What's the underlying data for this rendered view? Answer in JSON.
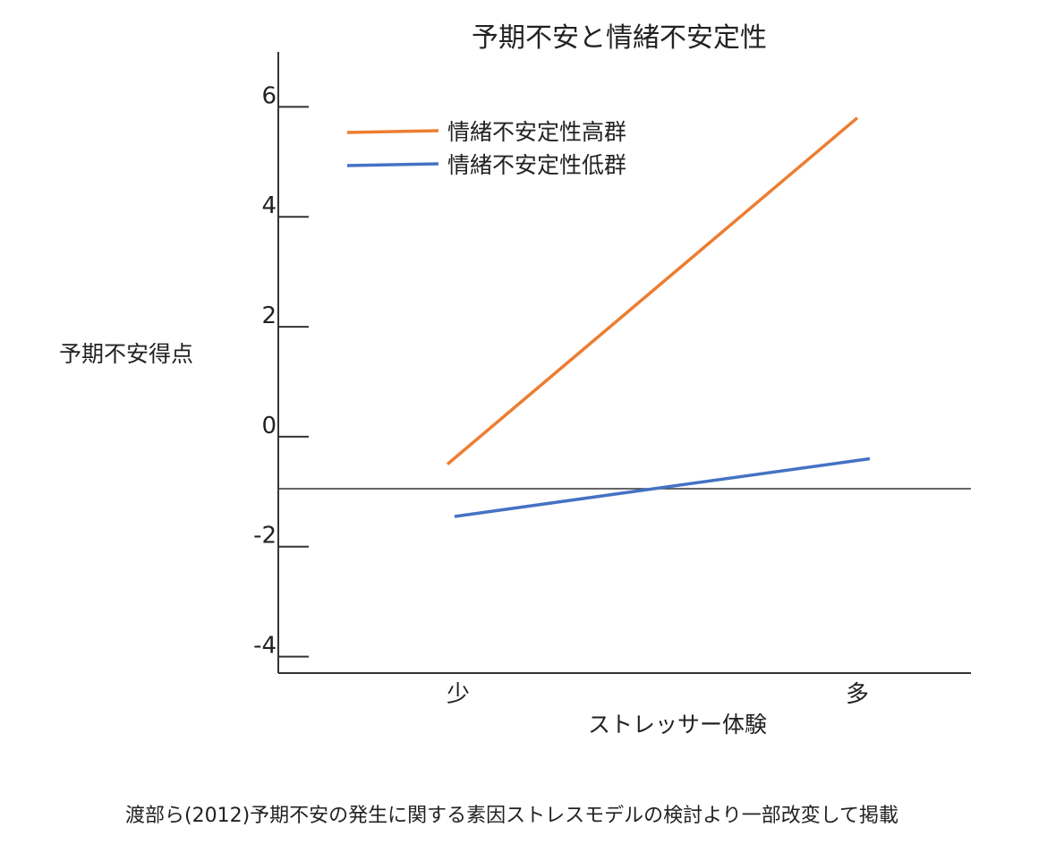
{
  "chart_data": {
    "type": "line",
    "title": "予期不安と情緒不安定性",
    "xlabel": "ストレッサー体験",
    "ylabel": "予期不安得点",
    "categories": [
      "少",
      "多"
    ],
    "yticks": [
      "6",
      "4",
      "2",
      "0",
      "-2",
      "-4"
    ],
    "ylim": [
      -4.3,
      7
    ],
    "series": [
      {
        "name": "情緒不安定性高群",
        "color": "#ed7d31",
        "values": [
          -0.5,
          5.8
        ]
      },
      {
        "name": "情緒不安定性低群",
        "color": "#4472c4",
        "values": [
          -1.45,
          -0.4
        ]
      }
    ],
    "zero_line": true,
    "legend_position": "top-left"
  },
  "caption": "渡部ら(2012)予期不安の発生に関する素因ストレスモデルの検討より一部改変して掲載"
}
